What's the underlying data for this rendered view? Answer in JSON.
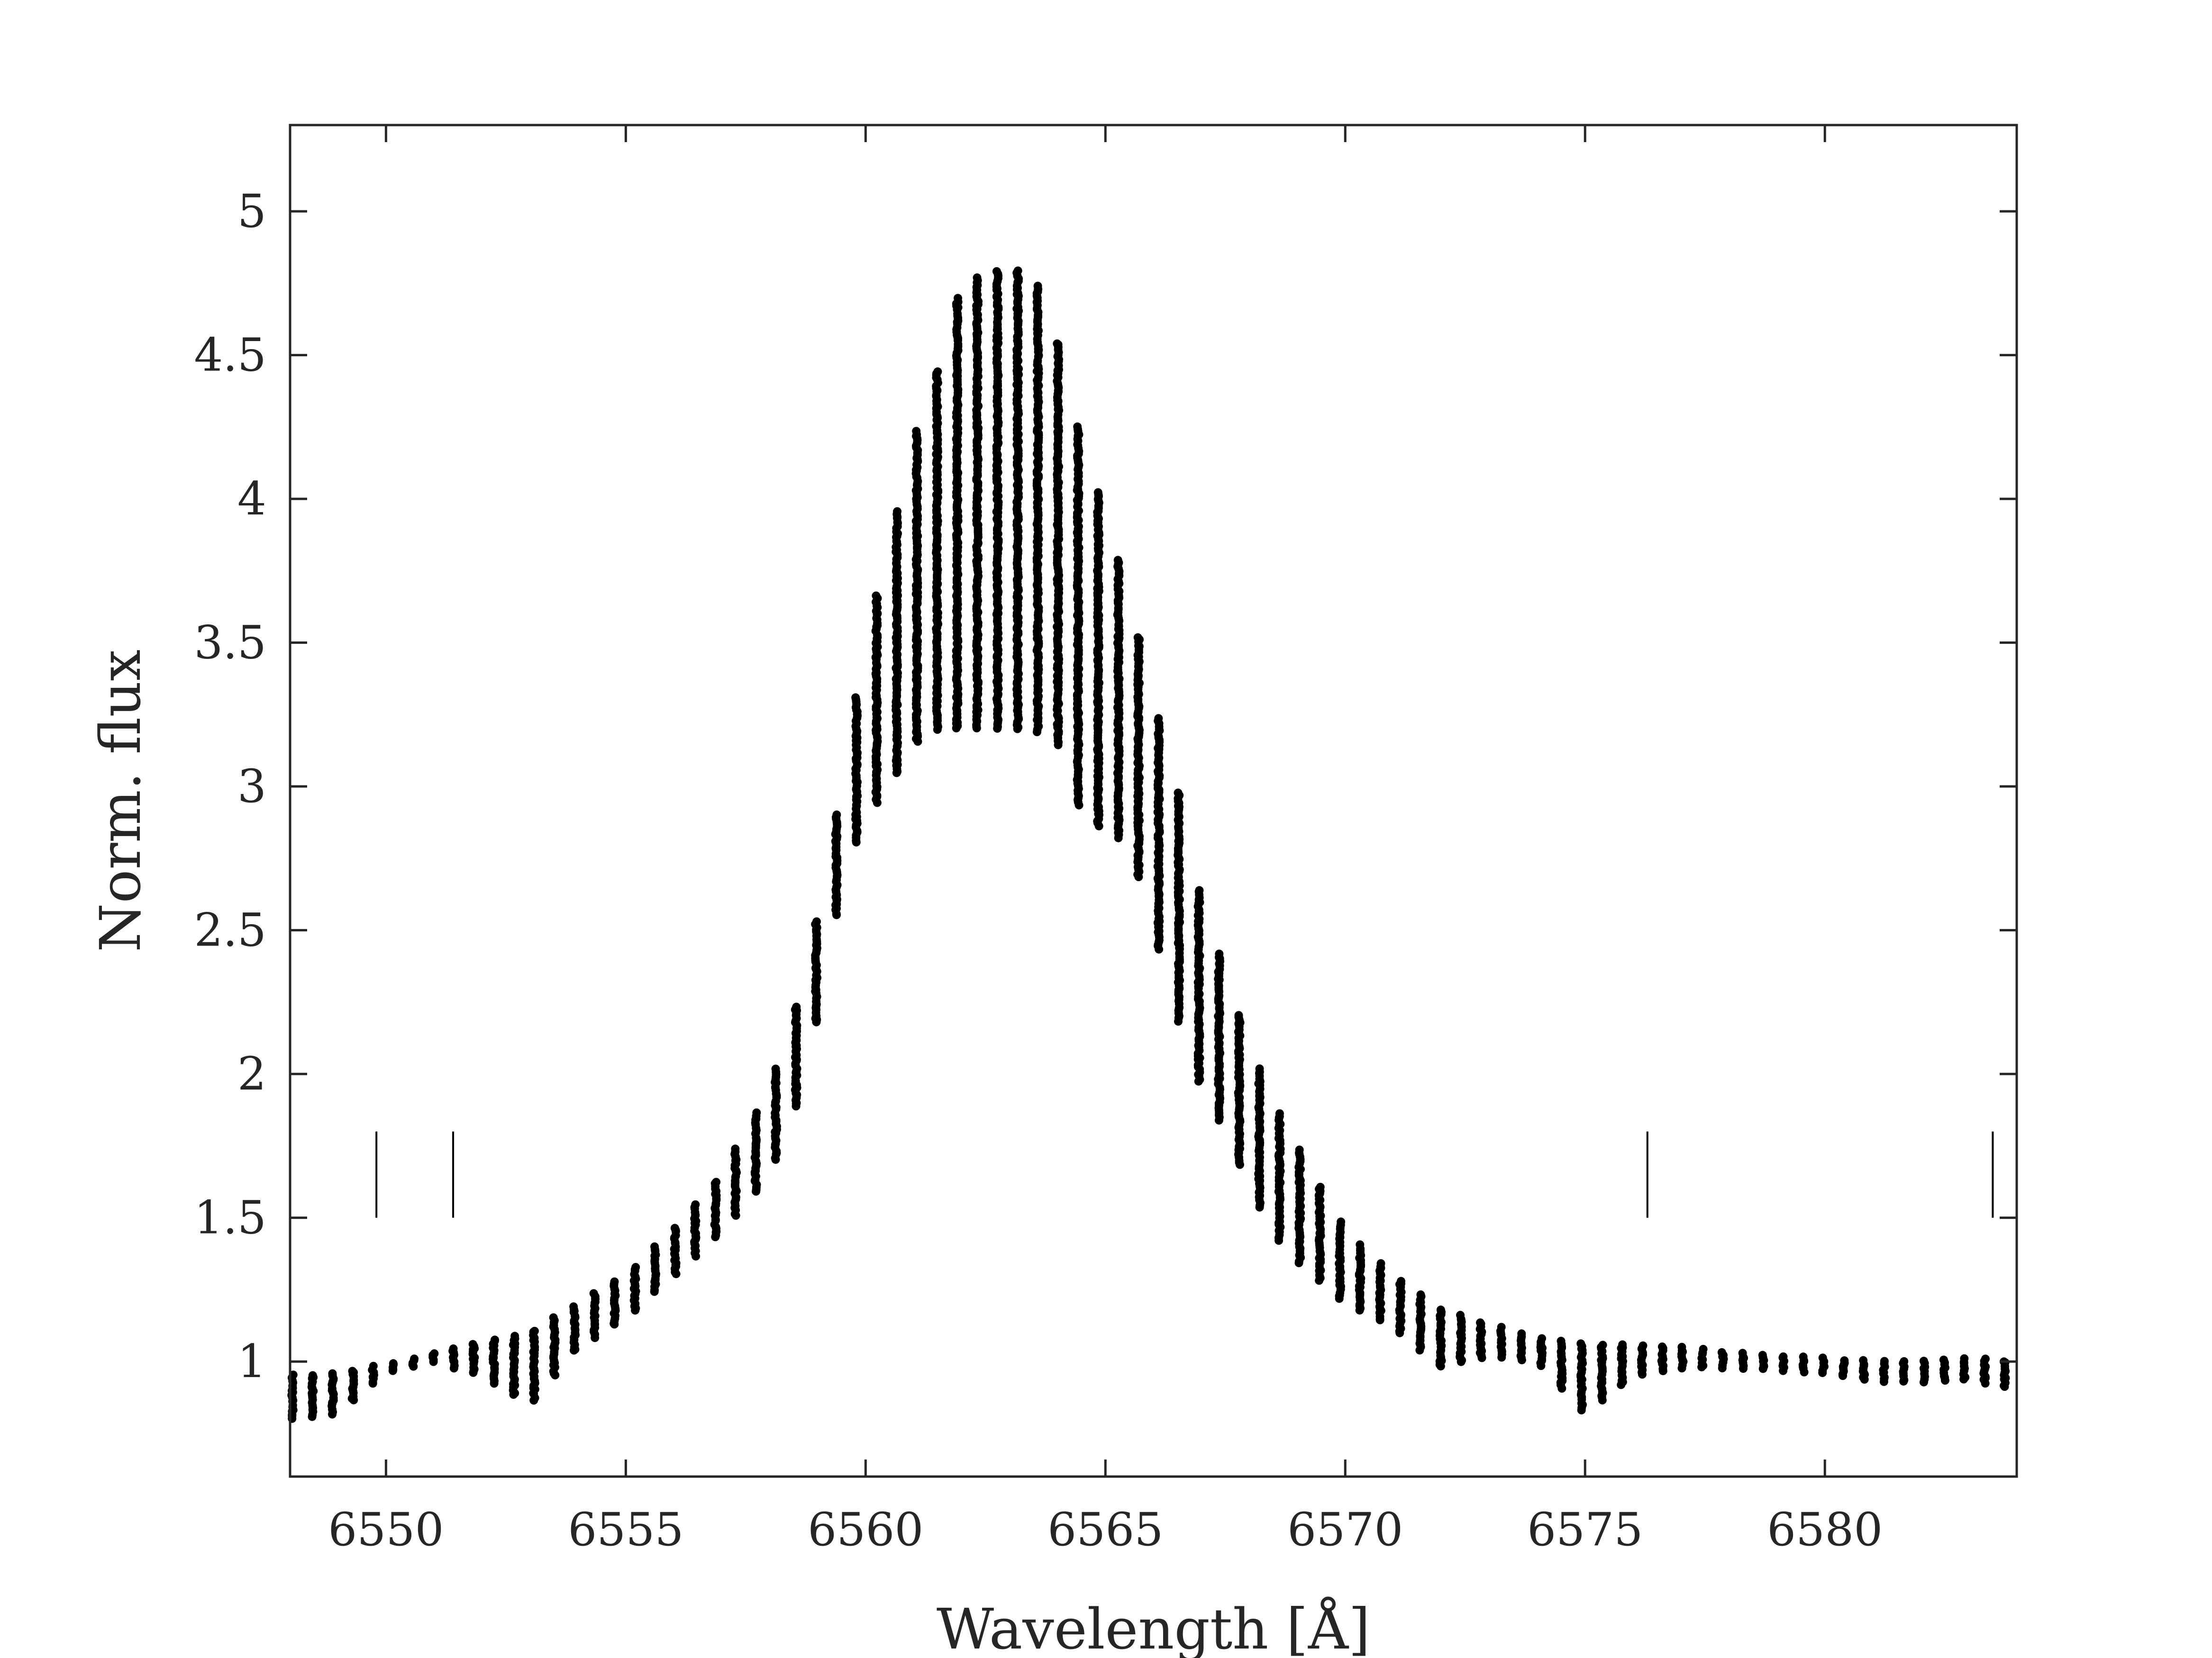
{
  "chart_data": {
    "type": "scatter",
    "title": "",
    "xlabel": "Wavelength [Å]",
    "ylabel": "Norm. flux",
    "xlim": [
      6548.0,
      6584.0
    ],
    "ylim": [
      0.6,
      5.3
    ],
    "xticks": [
      6550,
      6555,
      6560,
      6565,
      6570,
      6575,
      6580
    ],
    "yticks": [
      1,
      1.5,
      2,
      2.5,
      3,
      3.5,
      4,
      4.5,
      5
    ],
    "xtick_labels": [
      "6550",
      "6555",
      "6560",
      "6565",
      "6570",
      "6575",
      "6580"
    ],
    "ytick_labels": [
      "1",
      "1.5",
      "2",
      "2.5",
      "3",
      "3.5",
      "4",
      "4.5",
      "5"
    ],
    "grid": false,
    "legend": "none",
    "marker_color": "#000000",
    "axis_color": "#262626",
    "bin_step": 0.42,
    "series": [
      {
        "envelope_x": [
          6548.0,
          6549.0,
          6550.0,
          6551.0,
          6552.0,
          6553.0,
          6554.0,
          6555.0,
          6556.0,
          6557.0,
          6558.0,
          6558.5,
          6559.0,
          6559.5,
          6560.0,
          6560.5,
          6561.0,
          6561.5,
          6562.0,
          6562.5,
          6563.0,
          6563.5,
          6564.0,
          6564.5,
          6565.0,
          6565.5,
          6566.0,
          6566.5,
          6567.0,
          6567.5,
          6568.0,
          6568.5,
          6569.0,
          6570.0,
          6571.0,
          6572.0,
          6573.0,
          6574.0,
          6575.0,
          6576.0,
          6577.0,
          6578.0,
          6579.0,
          6580.0,
          6581.0,
          6582.0,
          6583.0,
          6584.0
        ],
        "envelope_upper": [
          0.95,
          0.96,
          0.99,
          1.03,
          1.07,
          1.1,
          1.2,
          1.3,
          1.46,
          1.65,
          1.95,
          2.2,
          2.55,
          3.0,
          3.5,
          3.85,
          4.2,
          4.45,
          4.75,
          4.78,
          4.8,
          4.78,
          4.55,
          4.2,
          3.95,
          3.65,
          3.3,
          3.0,
          2.6,
          2.35,
          2.1,
          1.9,
          1.75,
          1.45,
          1.3,
          1.18,
          1.13,
          1.08,
          1.06,
          1.06,
          1.05,
          1.03,
          1.02,
          1.01,
          1.0,
          1.0,
          1.01,
          1.0
        ],
        "envelope_lower": [
          0.8,
          0.82,
          0.96,
          1.0,
          0.95,
          0.85,
          1.05,
          1.15,
          1.3,
          1.45,
          1.65,
          1.85,
          2.2,
          2.65,
          2.9,
          3.0,
          3.15,
          3.2,
          3.2,
          3.2,
          3.2,
          3.2,
          3.15,
          2.9,
          2.85,
          2.8,
          2.5,
          2.2,
          1.95,
          1.8,
          1.6,
          1.45,
          1.35,
          1.2,
          1.12,
          0.98,
          1.02,
          1.0,
          0.82,
          0.95,
          0.98,
          0.98,
          0.97,
          0.96,
          0.93,
          0.93,
          0.94,
          0.9
        ]
      }
    ],
    "vertical_markers": [
      {
        "x": 6549.8,
        "y0": 1.5,
        "y1": 1.8
      },
      {
        "x": 6551.4,
        "y0": 1.5,
        "y1": 1.8
      },
      {
        "x": 6576.3,
        "y0": 1.5,
        "y1": 1.8
      },
      {
        "x": 6583.5,
        "y0": 1.5,
        "y1": 1.8
      }
    ]
  }
}
